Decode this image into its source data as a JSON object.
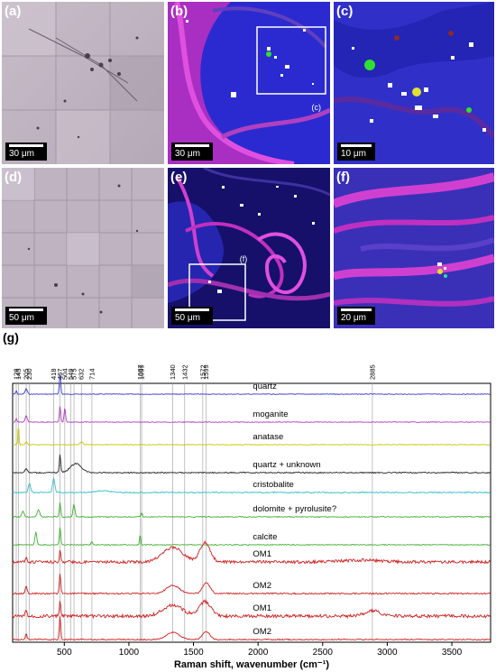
{
  "panels": [
    {
      "label": "(a)",
      "scale": "30 μm",
      "type": "optical"
    },
    {
      "label": "(b)",
      "scale": "30 μm",
      "type": "raman-map",
      "inset_label": "(c)"
    },
    {
      "label": "(c)",
      "scale": "10 μm",
      "type": "raman-map"
    },
    {
      "label": "(d)",
      "scale": "50 μm",
      "type": "optical"
    },
    {
      "label": "(e)",
      "scale": "50 μm",
      "type": "raman-map",
      "inset_label": "(f)"
    },
    {
      "label": "(f)",
      "scale": "20 μm",
      "type": "raman-map"
    }
  ],
  "spectra_label": "(g)",
  "chart_data": {
    "type": "line",
    "xlabel": "Raman shift, wavenumber (cm⁻¹)",
    "xlim": [
      100,
      3800
    ],
    "xticks": [
      500,
      1000,
      1500,
      2000,
      2500,
      3000,
      3500
    ],
    "peak_markers": [
      128,
      145,
      205,
      230,
      418,
      467,
      504,
      549,
      575,
      632,
      714,
      1087,
      1099,
      1340,
      1432,
      1572,
      1599,
      2885
    ],
    "series": [
      {
        "name": "quartz",
        "color": "#3a3acc",
        "baseline": 437,
        "noise": 0.4,
        "peaks": [
          [
            205,
            6,
            12
          ],
          [
            467,
            22,
            8
          ],
          [
            128,
            4,
            6
          ]
        ]
      },
      {
        "name": "moganite",
        "color": "#b040c0",
        "baseline": 468,
        "noise": 0.4,
        "peaks": [
          [
            205,
            7,
            12
          ],
          [
            467,
            18,
            8
          ],
          [
            504,
            16,
            8
          ],
          [
            128,
            4,
            6
          ]
        ]
      },
      {
        "name": "anatase",
        "color": "#c8c800",
        "baseline": 493,
        "noise": 0.4,
        "peaks": [
          [
            145,
            22,
            6
          ],
          [
            205,
            3,
            10
          ],
          [
            635,
            3,
            15
          ]
        ]
      },
      {
        "name": "quartz + unknown",
        "color": "#222222",
        "baseline": 524,
        "noise": 0.6,
        "peaks": [
          [
            205,
            5,
            12
          ],
          [
            467,
            20,
            8
          ],
          [
            590,
            10,
            60
          ]
        ]
      },
      {
        "name": "cristobalite",
        "color": "#30c0c8",
        "baseline": 546,
        "noise": 0.6,
        "peaks": [
          [
            230,
            10,
            12
          ],
          [
            418,
            16,
            12
          ],
          [
            800,
            2,
            80
          ]
        ]
      },
      {
        "name": "dolomite + pyrolusite?",
        "color": "#40b030",
        "baseline": 573,
        "noise": 0.5,
        "peaks": [
          [
            180,
            6,
            12
          ],
          [
            300,
            8,
            14
          ],
          [
            467,
            16,
            8
          ],
          [
            575,
            14,
            10
          ],
          [
            1099,
            5,
            7
          ]
        ]
      },
      {
        "name": "calcite",
        "color": "#40b030",
        "baseline": 604,
        "noise": 0.5,
        "peaks": [
          [
            280,
            14,
            10
          ],
          [
            467,
            20,
            8
          ],
          [
            714,
            4,
            8
          ],
          [
            1087,
            12,
            6
          ]
        ]
      },
      {
        "name": "OM1",
        "color": "#d02020",
        "baseline": 623,
        "noise": 1.6,
        "peaks": [
          [
            205,
            4,
            10
          ],
          [
            467,
            12,
            8
          ],
          [
            1340,
            16,
            110
          ],
          [
            1590,
            22,
            55
          ],
          [
            2800,
            2,
            200
          ]
        ]
      },
      {
        "name": "OM2",
        "color": "#d02020",
        "baseline": 658,
        "noise": 0.8,
        "peaks": [
          [
            205,
            8,
            10
          ],
          [
            467,
            22,
            8
          ],
          [
            1340,
            9,
            70
          ],
          [
            1599,
            12,
            40
          ]
        ]
      },
      {
        "name": "OM1",
        "color": "#d02020",
        "baseline": 683,
        "noise": 1.8,
        "peaks": [
          [
            205,
            6,
            10
          ],
          [
            467,
            16,
            8
          ],
          [
            1340,
            12,
            110
          ],
          [
            1590,
            16,
            60
          ],
          [
            2885,
            6,
            80
          ]
        ]
      },
      {
        "name": "OM2",
        "color": "#d02020",
        "baseline": 709,
        "noise": 0.6,
        "peaks": [
          [
            205,
            6,
            10
          ],
          [
            467,
            26,
            8
          ],
          [
            1340,
            8,
            70
          ],
          [
            1599,
            9,
            40
          ]
        ]
      }
    ]
  }
}
